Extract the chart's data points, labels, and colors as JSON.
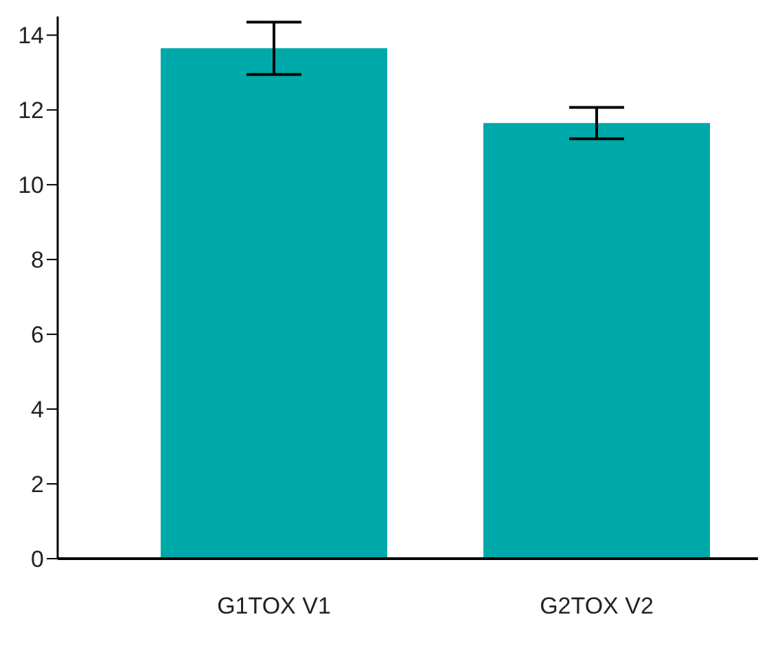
{
  "chart_data": {
    "type": "bar",
    "categories": [
      "G1TOX  V1",
      "G2TOX  V2"
    ],
    "values": [
      13.65,
      11.65
    ],
    "errors": [
      0.7,
      0.42
    ],
    "color": "#00a9a9",
    "ylim": [
      0,
      14.5
    ],
    "yticks": [
      0,
      2,
      4,
      6,
      8,
      10,
      12,
      14
    ],
    "grid": false,
    "legend": false
  }
}
